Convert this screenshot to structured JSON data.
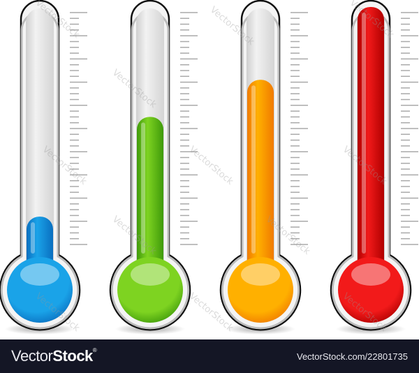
{
  "thermometers": [
    {
      "name": "blue",
      "level": 0.12,
      "color": "#1aa3e8",
      "dark": "#0a6fc0"
    },
    {
      "name": "green",
      "level": 0.55,
      "color": "#7ed321",
      "dark": "#3f9a0a"
    },
    {
      "name": "orange",
      "level": 0.71,
      "color": "#ffb000",
      "dark": "#f07a00"
    },
    {
      "name": "red",
      "level": 1.0,
      "color": "#f21a1a",
      "dark": "#b00000"
    }
  ],
  "watermark": "VectorStock",
  "footer": {
    "brand_light": "Vector",
    "brand_bold": "Stock",
    "registered": "®",
    "url": "VectorStock.com/22801735"
  }
}
